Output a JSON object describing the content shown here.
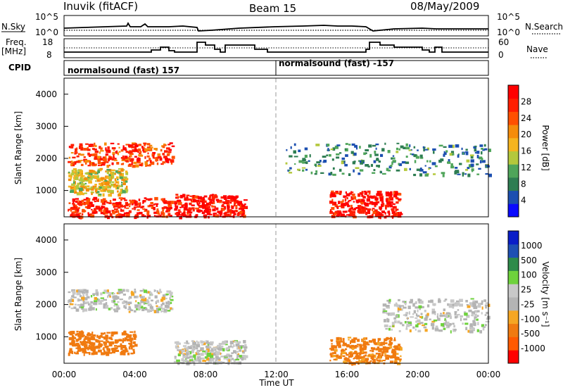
{
  "header": {
    "station": "Inuvik (fitACF)",
    "beam": "Beam 15",
    "date": "08/May/2009"
  },
  "top_panels": {
    "nsky_label": "N.Sky",
    "nsky_ticks": [
      "10^5",
      "10^0"
    ],
    "nsearch_label": "N.Search",
    "nsearch_ticks": [
      "10^5",
      "10^0"
    ],
    "freq_label_line1": "Freq.",
    "freq_label_line2": "[MHz]",
    "freq_ticks": [
      "18",
      "8"
    ],
    "nave_label": "Nave",
    "nave_ticks": [
      "60",
      "0"
    ],
    "cpid_label": "CPID",
    "cpid_segments": [
      {
        "label": "normalsound (fast) 157",
        "start_hour": 0
      },
      {
        "label": "normalsound (fast) -157",
        "start_hour": 12
      }
    ]
  },
  "colors": {
    "power_scale": [
      "#0a0aff",
      "#1c4fb0",
      "#2e7d52",
      "#4fa55a",
      "#b4c83c",
      "#f5b41e",
      "#f58c0a",
      "#ff5000",
      "#ff1e00",
      "#ff0000"
    ],
    "velocity_scale": [
      "#ff0000",
      "#ff5a00",
      "#f07a10",
      "#f5a623",
      "#b4b4b4",
      "#c8c8c8",
      "#6ed23c",
      "#2e8b4a",
      "#1e50b4",
      "#0a1ec8"
    ],
    "ground_scatter": "#b4b4b4"
  },
  "chart_data": [
    {
      "type": "heatmap",
      "name": "power",
      "ylabel": "Slant Range [km]",
      "xlabel": "Time UT",
      "colorbar_label": "Power [dB]",
      "colorbar_ticks": [
        "28",
        "24",
        "20",
        "16",
        "12",
        "8",
        "4"
      ],
      "xticks": [
        "00:00",
        "04:00",
        "08:00",
        "12:00",
        "16:00",
        "20:00",
        "00:00"
      ],
      "yticks": [
        "4000",
        "3000",
        "2000",
        "1000"
      ],
      "xlim_hours": [
        0,
        24
      ],
      "ylim_km": [
        180,
        4500
      ],
      "clim_db": [
        0,
        30
      ],
      "regions": [
        {
          "t0": 0.2,
          "t1": 6.1,
          "r0": 1800,
          "r1": 2500,
          "value": 24
        },
        {
          "t0": 0.2,
          "t1": 3.5,
          "r0": 900,
          "r1": 1700,
          "value": 16
        },
        {
          "t0": 0.2,
          "t1": 6.0,
          "r0": 200,
          "r1": 800,
          "value": 26
        },
        {
          "t0": 6.2,
          "t1": 10.2,
          "r0": 200,
          "r1": 900,
          "value": 28
        },
        {
          "t0": 15.0,
          "t1": 19.0,
          "r0": 200,
          "r1": 1000,
          "value": 28
        },
        {
          "t0": 12.5,
          "t1": 24.0,
          "r0": 1500,
          "r1": 2500,
          "value": 8
        }
      ],
      "dashed_line_hour": 12
    },
    {
      "type": "heatmap",
      "name": "velocity",
      "ylabel": "Slant Range [km]",
      "xlabel": "Time UT",
      "colorbar_label": "Velocity [m s⁻¹]",
      "colorbar_ticks": [
        "1000",
        "500",
        "100",
        "25",
        "-25",
        "-100",
        "-500",
        "-1000"
      ],
      "xticks": [
        "00:00",
        "04:00",
        "08:00",
        "12:00",
        "16:00",
        "20:00",
        "00:00"
      ],
      "yticks": [
        "4000",
        "3000",
        "2000",
        "1000"
      ],
      "xlim_hours": [
        0,
        24
      ],
      "ylim_km": [
        180,
        4500
      ],
      "regions": [
        {
          "t0": 0.2,
          "t1": 6.1,
          "r0": 1800,
          "r1": 2500,
          "value": 0
        },
        {
          "t0": 0.2,
          "t1": 4.0,
          "r0": 500,
          "r1": 1200,
          "value": -150
        },
        {
          "t0": 6.2,
          "t1": 10.2,
          "r0": 200,
          "r1": 900,
          "value": 0
        },
        {
          "t0": 15.0,
          "t1": 19.0,
          "r0": 200,
          "r1": 1000,
          "value": -120
        },
        {
          "t0": 18.0,
          "t1": 24.0,
          "r0": 1200,
          "r1": 2200,
          "value": 0
        }
      ],
      "dashed_line_hour": 12
    }
  ]
}
